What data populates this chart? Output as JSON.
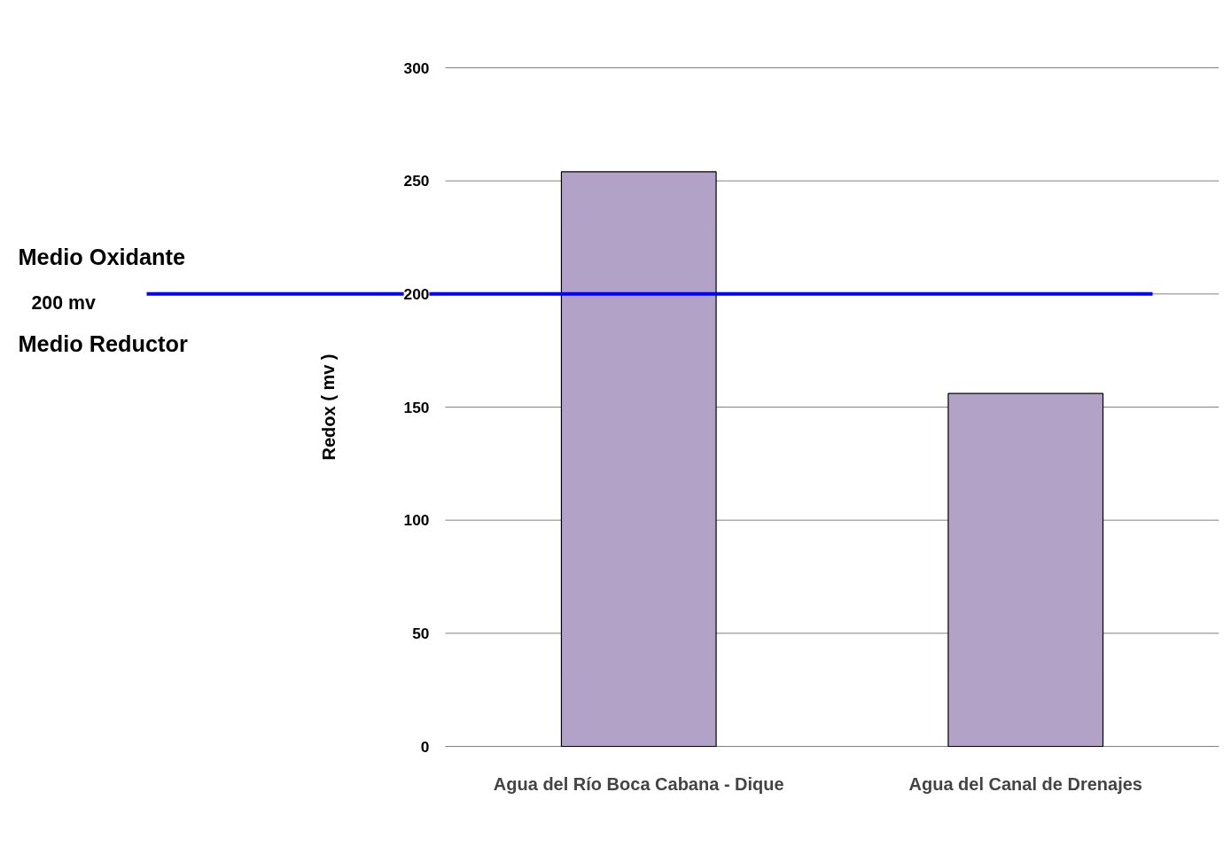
{
  "chart_data": {
    "type": "bar",
    "ylabel": "Redox ( mv )",
    "categories": [
      "Agua del Río Boca Cabana - Dique",
      "Agua del Canal de Drenajes"
    ],
    "values": [
      254,
      156
    ],
    "color": "#b2a2c7",
    "ylim": [
      0,
      300
    ],
    "yticks": [
      0,
      50,
      100,
      150,
      200,
      250,
      300
    ],
    "grid": "y",
    "ref_lines": [
      {
        "axis": "y",
        "value": 200,
        "label": "200 mv",
        "color": "#0000ff"
      }
    ],
    "annotations": [
      "Medio Oxidante",
      "Medio Reductor"
    ]
  }
}
